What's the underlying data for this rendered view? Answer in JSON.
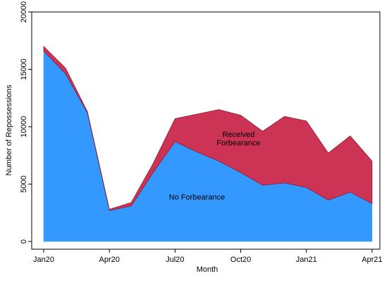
{
  "chart_data": {
    "type": "area",
    "stacked": true,
    "xlabel": "Month",
    "ylabel": "Number of Repossessions",
    "ylim": [
      0,
      20000
    ],
    "yticks": [
      0,
      5000,
      10000,
      15000,
      20000
    ],
    "xticks": [
      {
        "index": 0,
        "label": "Jan20"
      },
      {
        "index": 3,
        "label": "Apr20"
      },
      {
        "index": 6,
        "label": "Jul20"
      },
      {
        "index": 9,
        "label": "Oct20"
      },
      {
        "index": 12,
        "label": "Jan21"
      },
      {
        "index": 15,
        "label": "Apr21"
      }
    ],
    "x": [
      "Jan20",
      "Feb20",
      "Mar20",
      "Apr20",
      "May20",
      "Jun20",
      "Jul20",
      "Aug20",
      "Sep20",
      "Oct20",
      "Nov20",
      "Dec20",
      "Jan21",
      "Feb21",
      "Mar21",
      "Apr21"
    ],
    "grid": false,
    "series": [
      {
        "name": "No Forbearance",
        "color": "#3399ff",
        "values": [
          16600,
          14600,
          11200,
          2700,
          3100,
          6000,
          8700,
          7800,
          7000,
          6000,
          4900,
          5100,
          4700,
          3600,
          4300,
          3300
        ]
      },
      {
        "name": "Received Forbearance",
        "color": "#cc3355",
        "values": [
          400,
          500,
          100,
          100,
          300,
          800,
          2000,
          3300,
          4500,
          5000,
          4700,
          5800,
          5800,
          4100,
          4900,
          3700
        ]
      }
    ],
    "annotations": [
      {
        "lines": [
          "Received",
          "Forbearance"
        ],
        "series": "Received Forbearance",
        "x_index": 8.9,
        "y": 9000
      },
      {
        "lines": [
          "No Forbearance"
        ],
        "series": "No Forbearance",
        "x_index": 7,
        "y": 3900
      }
    ]
  }
}
